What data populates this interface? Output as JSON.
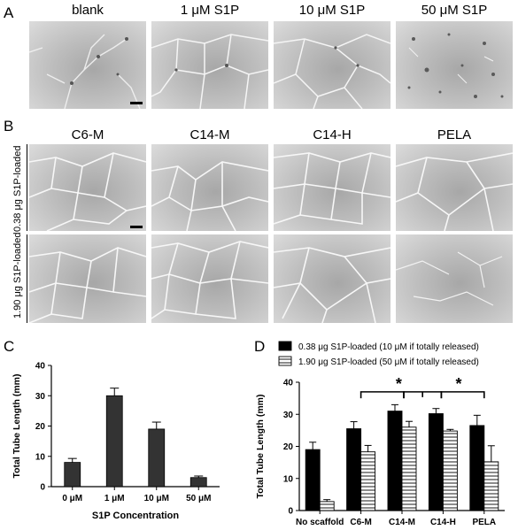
{
  "panel_a": {
    "letter": "A",
    "columns": [
      "blank",
      "1 μM S1P",
      "10 μM S1P",
      "50 μM S1P"
    ]
  },
  "panel_b": {
    "letter": "B",
    "columns": [
      "C6-M",
      "C14-M",
      "C14-H",
      "PELA"
    ],
    "rows": [
      "0.38 μg S1P-loaded",
      "1.90 μg S1P-loaded"
    ]
  },
  "panel_c": {
    "letter": "C"
  },
  "panel_d": {
    "letter": "D"
  },
  "chart_data": [
    {
      "type": "bar",
      "categories": [
        "0 μM",
        "1 μM",
        "10 μM",
        "50 μM"
      ],
      "values": [
        8,
        30,
        19,
        3
      ],
      "errors": [
        1.3,
        2.5,
        2.3,
        0.5
      ],
      "xlabel": "S1P Concentration",
      "ylabel": "Total Tube Length (mm)",
      "ylim": [
        0,
        40
      ],
      "yticks": [
        0,
        10,
        20,
        30,
        40
      ],
      "bar_color": "#333333"
    },
    {
      "type": "bar",
      "categories": [
        "No scaffold",
        "C6-M",
        "C14-M",
        "C14-H",
        "PELA"
      ],
      "series": [
        {
          "name": "0.38 μg S1P-loaded (10 μM if totally released)",
          "values": [
            19,
            25.5,
            31,
            30.2,
            26.5
          ],
          "errors": [
            2.3,
            2.2,
            2.0,
            1.6,
            3.2
          ],
          "fill": "solid"
        },
        {
          "name": "1.90 μg S1P-loaded (50 μM if totally released)",
          "values": [
            2.8,
            18.3,
            26,
            24.8,
            15.2
          ],
          "errors": [
            0.6,
            2.0,
            1.8,
            0.5,
            5.0
          ],
          "fill": "striped"
        }
      ],
      "ylabel": "Total Tube Length (mm)",
      "ylim": [
        0,
        40
      ],
      "yticks": [
        0,
        10,
        20,
        30,
        40
      ],
      "annotations": [
        "*",
        "*"
      ],
      "legend_position": "top"
    }
  ]
}
